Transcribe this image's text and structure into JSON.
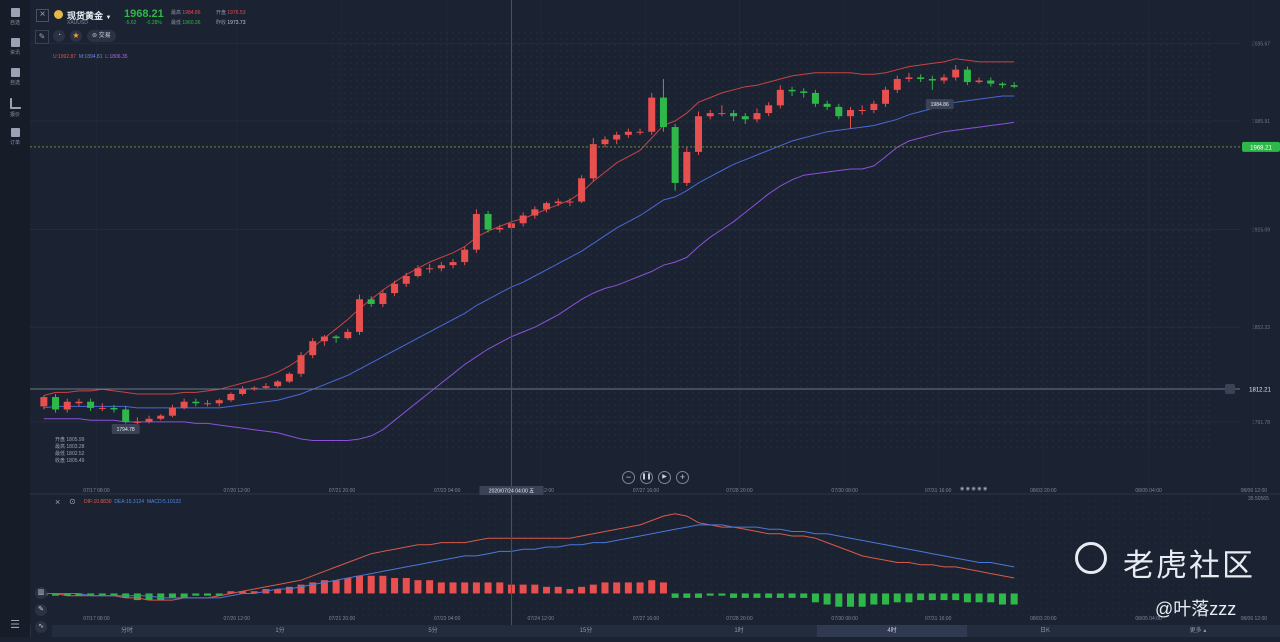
{
  "sidebar": {
    "items": [
      {
        "label": "自选",
        "icon": "bookmark-icon"
      },
      {
        "label": "资讯",
        "icon": "news-icon"
      },
      {
        "label": "自选",
        "icon": "list-icon"
      },
      {
        "label": "报价",
        "icon": "chart-line-icon"
      },
      {
        "label": "订单",
        "icon": "order-icon"
      }
    ],
    "bottom_icon": "menu-icon"
  },
  "header": {
    "symbol_name": "现货黄金",
    "symbol_code": "XAUUSD",
    "price": "1968.21",
    "change": "-5.62",
    "change_pct": "-0.28%",
    "stats": [
      {
        "label": "最高",
        "value": "1984.86"
      },
      {
        "label": "开盘",
        "value": "1976.53"
      },
      {
        "label": "最低",
        "value": "1960.36"
      },
      {
        "label": "昨收",
        "value": "1973.73"
      }
    ],
    "trade_label": "交易"
  },
  "boll_legend": {
    "upper": "U:1992.87",
    "mid": "M:1894.81",
    "lower": "L:1806.35"
  },
  "price_axis": {
    "current": "1968.21",
    "alert": "1812.21",
    "ticks": [
      "2035.67",
      "1985.91",
      "1915.09",
      "1852.23",
      "1791.78"
    ]
  },
  "annotations": {
    "high": "1984.86",
    "low": "1794.78"
  },
  "ohlc_box": [
    "开盘 1805.99",
    "最高 1803.28",
    "最低 1802.52",
    "收盘 1805.49"
  ],
  "time_axis": [
    "07/17 08:00",
    "07/20 12:00",
    "07/21 20:00",
    "07/23 04:00",
    "07/24 12:00",
    "07/27 16:00",
    "07/28 20:00",
    "07/30 08:00",
    "07/31 16:00",
    "08/03 20:00",
    "08/05 04:00",
    "08/06 12:00"
  ],
  "crosshair_time": "2020/07/24 04:00 五",
  "macd_legend": {
    "dif": "DIF:10.8830",
    "dea": "DEA:16.3124",
    "macd": "MACD:5.10132"
  },
  "macd_axis_top": "35.50565",
  "timeframes": [
    "分时",
    "1分",
    "5分",
    "15分",
    "1时",
    "4时",
    "日K",
    "更多"
  ],
  "active_timeframe": "4时",
  "watermark": {
    "brand": "老虎社区",
    "author": "@叶落zzz"
  },
  "colors": {
    "up": "#e84f4f",
    "down": "#2fb84a",
    "boll_upper": "#c84444",
    "boll_mid": "#4a68d8",
    "boll_lower": "#8a52d8",
    "dif": "#d85a4a",
    "dea": "#4a78d8",
    "price_green": "#2fb84a"
  },
  "chart_data": {
    "type": "candlestick",
    "candles": [
      [
        1801,
        1807,
        1808,
        1799
      ],
      [
        1807,
        1799,
        1809,
        1797
      ],
      [
        1799,
        1804,
        1806,
        1797
      ],
      [
        1803,
        1804,
        1806,
        1801
      ],
      [
        1804,
        1800,
        1806,
        1798
      ],
      [
        1800,
        1800,
        1803,
        1798
      ],
      [
        1800,
        1799,
        1802,
        1797
      ],
      [
        1799,
        1791,
        1801,
        1790
      ],
      [
        1791,
        1791,
        1794,
        1789
      ],
      [
        1791,
        1793,
        1795,
        1790
      ],
      [
        1793,
        1795,
        1796,
        1792
      ],
      [
        1795,
        1800,
        1802,
        1794
      ],
      [
        1800,
        1804,
        1806,
        1799
      ],
      [
        1804,
        1803,
        1806,
        1801
      ],
      [
        1803,
        1803,
        1805,
        1801
      ],
      [
        1803,
        1805,
        1806,
        1801
      ],
      [
        1805,
        1809,
        1810,
        1804
      ],
      [
        1809,
        1812,
        1814,
        1808
      ],
      [
        1812,
        1813,
        1814,
        1811
      ],
      [
        1813,
        1814,
        1816,
        1812
      ],
      [
        1814,
        1817,
        1818,
        1813
      ],
      [
        1817,
        1822,
        1823,
        1816
      ],
      [
        1822,
        1834,
        1836,
        1820
      ],
      [
        1834,
        1843,
        1845,
        1832
      ],
      [
        1843,
        1846,
        1847,
        1840
      ],
      [
        1846,
        1845,
        1847,
        1842
      ],
      [
        1845,
        1849,
        1851,
        1844
      ],
      [
        1849,
        1870,
        1873,
        1847
      ],
      [
        1870,
        1867,
        1872,
        1865
      ],
      [
        1867,
        1874,
        1876,
        1865
      ],
      [
        1874,
        1880,
        1882,
        1872
      ],
      [
        1880,
        1885,
        1887,
        1878
      ],
      [
        1885,
        1890,
        1892,
        1884
      ],
      [
        1890,
        1890,
        1893,
        1887
      ],
      [
        1890,
        1892,
        1894,
        1888
      ],
      [
        1892,
        1894,
        1896,
        1890
      ],
      [
        1894,
        1902,
        1904,
        1892
      ],
      [
        1902,
        1925,
        1928,
        1900
      ],
      [
        1925,
        1915,
        1927,
        1913
      ],
      [
        1915,
        1916,
        1918,
        1913
      ],
      [
        1916,
        1919,
        1921,
        1914
      ],
      [
        1919,
        1924,
        1926,
        1917
      ],
      [
        1924,
        1928,
        1930,
        1922
      ],
      [
        1928,
        1932,
        1933,
        1926
      ],
      [
        1932,
        1933,
        1935,
        1930
      ],
      [
        1933,
        1933,
        1935,
        1930
      ],
      [
        1933,
        1948,
        1950,
        1932
      ],
      [
        1948,
        1970,
        1974,
        1946
      ],
      [
        1970,
        1973,
        1975,
        1968
      ],
      [
        1973,
        1976,
        1978,
        1970
      ],
      [
        1976,
        1978,
        1980,
        1974
      ],
      [
        1978,
        1978,
        1980,
        1976
      ],
      [
        1978,
        2000,
        2003,
        1976
      ],
      [
        2000,
        1981,
        2012,
        1978
      ],
      [
        1981,
        1945,
        1983,
        1940
      ],
      [
        1945,
        1965,
        1968,
        1943
      ],
      [
        1965,
        1988,
        1991,
        1963
      ],
      [
        1988,
        1990,
        1992,
        1986
      ],
      [
        1990,
        1990,
        1995,
        1988
      ],
      [
        1990,
        1988,
        1992,
        1985
      ],
      [
        1988,
        1986,
        1990,
        1983
      ],
      [
        1986,
        1990,
        1993,
        1984
      ],
      [
        1990,
        1995,
        1997,
        1988
      ],
      [
        1995,
        2005,
        2008,
        1993
      ],
      [
        2005,
        2004,
        2007,
        2001
      ],
      [
        2004,
        2003,
        2006,
        2000
      ],
      [
        2003,
        1996,
        2005,
        1994
      ],
      [
        1996,
        1994,
        1998,
        1992
      ],
      [
        1994,
        1988,
        1996,
        1986
      ],
      [
        1988,
        1992,
        1994,
        1980
      ],
      [
        1992,
        1992,
        1995,
        1989
      ],
      [
        1992,
        1996,
        1998,
        1990
      ],
      [
        1996,
        2005,
        2007,
        1994
      ],
      [
        2005,
        2012,
        2014,
        2003
      ],
      [
        2012,
        2013,
        2016,
        2010
      ],
      [
        2013,
        2012,
        2015,
        2010
      ],
      [
        2012,
        2011,
        2014,
        2005
      ],
      [
        2011,
        2013,
        2015,
        2009
      ],
      [
        2013,
        2018,
        2021,
        2011
      ],
      [
        2018,
        2010,
        2020,
        2008
      ],
      [
        2010,
        2011,
        2013,
        2009
      ],
      [
        2011,
        2009,
        2013,
        2007
      ],
      [
        2009,
        2008,
        2010,
        2006
      ],
      [
        2008,
        2007,
        2010,
        2006
      ]
    ],
    "boll_upper": [
      1808,
      1810,
      1810,
      1811,
      1811,
      1812,
      1811,
      1810,
      1809,
      1809,
      1809,
      1809,
      1810,
      1810,
      1811,
      1812,
      1814,
      1816,
      1818,
      1820,
      1823,
      1827,
      1832,
      1839,
      1845,
      1851,
      1857,
      1864,
      1870,
      1876,
      1881,
      1886,
      1890,
      1894,
      1897,
      1900,
      1904,
      1910,
      1914,
      1917,
      1920,
      1922,
      1925,
      1928,
      1931,
      1934,
      1939,
      1946,
      1952,
      1958,
      1962,
      1966,
      1974,
      1982,
      1985,
      1990,
      1997,
      2000,
      2003,
      2005,
      2007,
      2008,
      2010,
      2012,
      2014,
      2015,
      2016,
      2016,
      2016,
      2016,
      2015,
      2015,
      2016,
      2018,
      2020,
      2021,
      2022,
      2023,
      2025,
      2024,
      2023,
      2023,
      2023,
      2023
    ],
    "boll_mid": [
      1800,
      1801,
      1801,
      1801,
      1801,
      1801,
      1801,
      1801,
      1800,
      1800,
      1800,
      1800,
      1800,
      1800,
      1800,
      1800,
      1801,
      1802,
      1803,
      1804,
      1805,
      1807,
      1809,
      1812,
      1815,
      1818,
      1821,
      1825,
      1829,
      1833,
      1837,
      1841,
      1845,
      1849,
      1853,
      1857,
      1861,
      1866,
      1870,
      1874,
      1878,
      1881,
      1885,
      1889,
      1893,
      1897,
      1901,
      1906,
      1911,
      1916,
      1920,
      1924,
      1929,
      1934,
      1936,
      1940,
      1945,
      1949,
      1953,
      1957,
      1960,
      1963,
      1966,
      1969,
      1972,
      1974,
      1976,
      1978,
      1979,
      1980,
      1981,
      1982,
      1984,
      1986,
      1989,
      1991,
      1993,
      1995,
      1997,
      1998,
      1999,
      2000,
      2001,
      2001
    ],
    "boll_lower": [
      1793,
      1793,
      1793,
      1793,
      1792,
      1792,
      1792,
      1791,
      1791,
      1791,
      1791,
      1791,
      1791,
      1790,
      1790,
      1789,
      1788,
      1787,
      1786,
      1785,
      1784,
      1782,
      1780,
      1779,
      1779,
      1779,
      1779,
      1780,
      1782,
      1786,
      1792,
      1798,
      1804,
      1810,
      1816,
      1822,
      1828,
      1833,
      1838,
      1842,
      1846,
      1849,
      1852,
      1856,
      1860,
      1865,
      1870,
      1874,
      1877,
      1879,
      1882,
      1885,
      1888,
      1892,
      1894,
      1897,
      1904,
      1910,
      1915,
      1920,
      1926,
      1932,
      1938,
      1943,
      1947,
      1950,
      1951,
      1952,
      1953,
      1954,
      1954,
      1956,
      1962,
      1968,
      1972,
      1974,
      1976,
      1978,
      1979,
      1980,
      1981,
      1982,
      1983,
      1984
    ],
    "macd_hist": [
      -1,
      -1,
      -1,
      -1,
      -1,
      -1,
      -1,
      -2,
      -3,
      -3,
      -3,
      -2,
      -2,
      -1,
      -1,
      -1,
      1,
      1,
      1,
      2,
      2,
      3,
      4,
      5,
      6,
      6,
      7,
      8,
      8,
      8,
      7,
      7,
      6,
      6,
      5,
      5,
      5,
      5,
      5,
      5,
      4,
      4,
      4,
      3,
      3,
      2,
      3,
      4,
      5,
      5,
      5,
      5,
      6,
      5,
      -2,
      -2,
      -2,
      -1,
      -1,
      -2,
      -2,
      -2,
      -2,
      -2,
      -2,
      -2,
      -4,
      -5,
      -6,
      -6,
      -6,
      -5,
      -5,
      -4,
      -4,
      -3,
      -3,
      -3,
      -3,
      -4,
      -4,
      -4,
      -5,
      -5
    ],
    "dif": [
      0,
      0,
      -1,
      -1,
      -1,
      -1,
      -1,
      -2,
      -2,
      -3,
      -3,
      -3,
      -2,
      -2,
      -2,
      -1,
      0,
      1,
      2,
      3,
      4,
      5,
      6,
      8,
      10,
      12,
      14,
      16,
      18,
      19,
      20,
      21,
      22,
      22,
      23,
      23,
      23,
      24,
      25,
      25,
      25,
      25,
      25,
      25,
      25,
      25,
      26,
      27,
      28,
      29,
      30,
      31,
      33,
      35,
      36,
      35,
      32,
      31,
      30,
      30,
      29,
      28,
      27,
      27,
      26,
      26,
      25,
      23,
      21,
      19,
      17,
      16,
      15,
      14,
      14,
      13,
      13,
      12,
      12,
      11,
      10,
      9,
      8,
      7
    ],
    "dea": [
      0,
      0,
      0,
      0,
      -1,
      -1,
      -1,
      -1,
      -1,
      -1,
      -2,
      -2,
      -2,
      -2,
      -2,
      -2,
      -1,
      0,
      0,
      1,
      2,
      2,
      3,
      4,
      5,
      6,
      7,
      8,
      9,
      10,
      11,
      12,
      13,
      14,
      15,
      16,
      17,
      17,
      18,
      19,
      19,
      20,
      20,
      21,
      21,
      22,
      22,
      23,
      23,
      24,
      25,
      26,
      27,
      28,
      29,
      30,
      31,
      31,
      31,
      30,
      30,
      30,
      29,
      29,
      28,
      28,
      27,
      27,
      26,
      25,
      24,
      23,
      22,
      21,
      20,
      19,
      18,
      17,
      16,
      15,
      14,
      14,
      13,
      12
    ],
    "price_range": [
      1760,
      2050
    ],
    "macd_range": [
      -12,
      40
    ]
  }
}
